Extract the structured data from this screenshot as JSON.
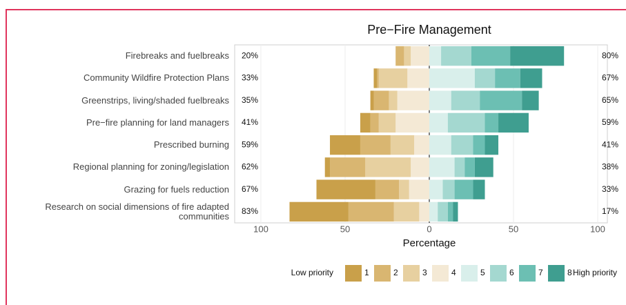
{
  "chart_data": {
    "type": "diverging_bar",
    "title": "Pre−Fire Management",
    "x_label": "Percentage",
    "categories": [
      "Firebreaks and fuelbreaks",
      "Community Wildfire Protection Plans",
      "Greenstrips, living/shaded fuelbreaks",
      "Pre−fire planning for land managers",
      "Prescribed burning",
      "Regional planning for zoning/legislation",
      "Grazing for fuels reduction",
      "Research on social dimensions of fire adapted communities"
    ],
    "series": [
      {
        "name": "1",
        "color": "#c9a04a",
        "side": "low",
        "values": [
          0,
          2,
          2,
          6,
          18,
          3,
          35,
          35
        ]
      },
      {
        "name": "2",
        "color": "#d9b671",
        "side": "low",
        "values": [
          5,
          1,
          9,
          5,
          18,
          21,
          14,
          27
        ]
      },
      {
        "name": "3",
        "color": "#e7d0a0",
        "side": "low",
        "values": [
          4,
          17,
          5,
          10,
          14,
          27,
          6,
          15
        ]
      },
      {
        "name": "4",
        "color": "#f4e9d5",
        "side": "low",
        "values": [
          11,
          13,
          19,
          20,
          9,
          11,
          12,
          6
        ]
      },
      {
        "name": "5",
        "color": "#d9efeb",
        "side": "high",
        "values": [
          7,
          27,
          13,
          11,
          13,
          15,
          8,
          5
        ]
      },
      {
        "name": "6",
        "color": "#a4d8d0",
        "side": "high",
        "values": [
          18,
          12,
          17,
          22,
          13,
          6,
          7,
          6
        ]
      },
      {
        "name": "7",
        "color": "#6cbfb3",
        "side": "high",
        "values": [
          23,
          15,
          25,
          8,
          7,
          6,
          11,
          3
        ]
      },
      {
        "name": "8",
        "color": "#3f9e90",
        "side": "high",
        "values": [
          32,
          13,
          10,
          18,
          8,
          11,
          7,
          3
        ]
      }
    ],
    "low_totals": [
      20,
      33,
      35,
      41,
      59,
      62,
      67,
      83
    ],
    "low_total_labels": [
      "20%",
      "33%",
      "35%",
      "41%",
      "59%",
      "62%",
      "67%",
      "83%"
    ],
    "high_totals": [
      80,
      67,
      65,
      59,
      41,
      38,
      33,
      17
    ],
    "high_total_labels": [
      "80%",
      "67%",
      "65%",
      "59%",
      "41%",
      "38%",
      "33%",
      "17%"
    ],
    "xlim": [
      -100,
      100
    ],
    "xticks": [
      {
        "value": -100,
        "label": "100"
      },
      {
        "value": -50,
        "label": "50"
      },
      0,
      50,
      100
    ],
    "grid": true,
    "legend_low_label": "Low priority",
    "legend_high_label": "High priority"
  }
}
